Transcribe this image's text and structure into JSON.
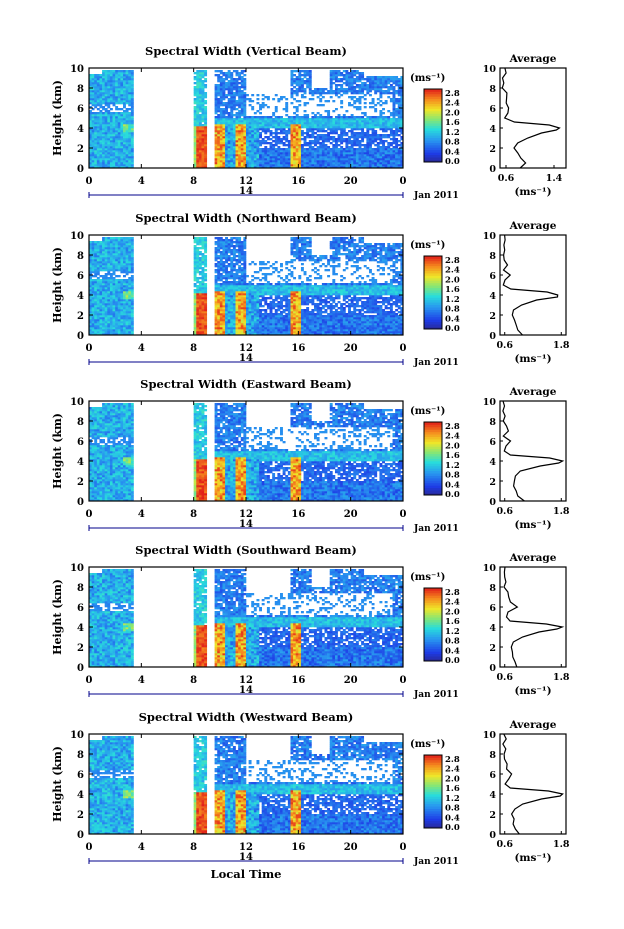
{
  "figure": {
    "xlabel": "Local Time",
    "date_main": "Jan 2011",
    "date_day": "14",
    "unit_label": "(ms⁻¹)",
    "avg_title": "Average",
    "avg_unit": "(ms⁻¹)",
    "ylabel": "Height (km)"
  },
  "chart_data": [
    {
      "type": "heatmap",
      "title": "Spectral Width (Vertical Beam)",
      "ylabel": "Height (km)",
      "xticks": [
        "0",
        "4",
        "8",
        "12",
        "16",
        "20",
        "0"
      ],
      "yticks": [
        "0",
        "2",
        "4",
        "6",
        "8",
        "10"
      ],
      "xlim": [
        0,
        24
      ],
      "ylim": [
        0,
        10
      ],
      "colorbar": {
        "ticks": [
          "0.0",
          "0.4",
          "0.8",
          "1.2",
          "1.6",
          "2.0",
          "2.4",
          "2.8"
        ],
        "range": [
          0,
          3.0
        ]
      },
      "average_profile": {
        "xticks": [
          "0.6",
          "1.4"
        ],
        "xlim": [
          0.5,
          1.6
        ],
        "height": [
          0,
          0.5,
          1,
          1.5,
          2,
          2.5,
          3,
          3.5,
          3.8,
          4,
          4.3,
          4.6,
          5,
          5.5,
          6,
          6.5,
          7,
          7.5,
          8,
          8.5,
          9,
          9.5,
          10
        ],
        "value": [
          0.85,
          0.92,
          0.86,
          0.78,
          0.76,
          0.82,
          0.95,
          1.2,
          1.45,
          1.5,
          1.3,
          0.75,
          0.6,
          0.62,
          0.66,
          0.58,
          0.62,
          0.6,
          0.55,
          0.57,
          0.56,
          0.6,
          0.58
        ]
      }
    },
    {
      "type": "heatmap",
      "title": "Spectral Width (Northward Beam)",
      "ylabel": "Height (km)",
      "xticks": [
        "0",
        "4",
        "8",
        "12",
        "16",
        "20",
        "0"
      ],
      "yticks": [
        "0",
        "2",
        "4",
        "6",
        "8",
        "10"
      ],
      "xlim": [
        0,
        24
      ],
      "ylim": [
        0,
        10
      ],
      "colorbar": {
        "ticks": [
          "0.0",
          "0.4",
          "0.8",
          "1.2",
          "1.6",
          "2.0",
          "2.4",
          "2.8"
        ],
        "range": [
          0,
          3.0
        ]
      },
      "average_profile": {
        "xticks": [
          "0.6",
          "1.8"
        ],
        "xlim": [
          0.5,
          1.9
        ],
        "height": [
          0,
          0.5,
          1,
          1.5,
          2,
          2.5,
          3,
          3.5,
          3.8,
          4,
          4.3,
          4.6,
          5,
          5.5,
          6,
          6.5,
          7,
          7.5,
          8,
          8.5,
          9,
          9.5,
          10
        ],
        "value": [
          0.95,
          0.85,
          0.82,
          0.78,
          0.76,
          0.8,
          0.95,
          1.3,
          1.7,
          1.75,
          1.5,
          0.7,
          0.6,
          0.62,
          0.7,
          0.6,
          0.65,
          0.62,
          0.58,
          0.6,
          0.56,
          0.62,
          0.58
        ]
      }
    },
    {
      "type": "heatmap",
      "title": "Spectral Width (Eastward Beam)",
      "ylabel": "Height (km)",
      "xticks": [
        "0",
        "4",
        "8",
        "12",
        "16",
        "20",
        "0"
      ],
      "yticks": [
        "0",
        "2",
        "4",
        "6",
        "8",
        "10"
      ],
      "xlim": [
        0,
        24
      ],
      "ylim": [
        0,
        10
      ],
      "colorbar": {
        "ticks": [
          "0.0",
          "0.4",
          "0.8",
          "1.2",
          "1.6",
          "2.0",
          "2.4",
          "2.8"
        ],
        "range": [
          0,
          3.0
        ]
      },
      "average_profile": {
        "xticks": [
          "0.6",
          "1.8"
        ],
        "xlim": [
          0.5,
          1.9
        ],
        "height": [
          0,
          0.5,
          1,
          1.5,
          2,
          2.5,
          3,
          3.5,
          3.8,
          4,
          4.3,
          4.6,
          5,
          5.5,
          6,
          6.5,
          7,
          7.5,
          8,
          8.5,
          9,
          9.5,
          10
        ],
        "value": [
          1.0,
          0.9,
          0.85,
          0.8,
          0.78,
          0.82,
          0.95,
          1.35,
          1.75,
          1.8,
          1.55,
          0.72,
          0.6,
          0.64,
          0.72,
          0.6,
          0.66,
          0.62,
          0.58,
          0.6,
          0.57,
          0.62,
          0.58
        ]
      }
    },
    {
      "type": "heatmap",
      "title": "Spectral Width (Southward Beam)",
      "ylabel": "Height (km)",
      "xticks": [
        "0",
        "4",
        "8",
        "12",
        "16",
        "20",
        "0"
      ],
      "yticks": [
        "0",
        "2",
        "4",
        "6",
        "8",
        "10"
      ],
      "xlim": [
        0,
        24
      ],
      "ylim": [
        0,
        10
      ],
      "colorbar": {
        "ticks": [
          "0.0",
          "0.4",
          "0.8",
          "1.2",
          "1.6",
          "2.0",
          "2.4",
          "2.8"
        ],
        "range": [
          0,
          3.0
        ]
      },
      "average_profile": {
        "xticks": [
          "0.6",
          "1.8"
        ],
        "xlim": [
          0.5,
          1.9
        ],
        "height": [
          0,
          0.5,
          1,
          1.5,
          2,
          2.5,
          3,
          3.5,
          3.8,
          4,
          4.3,
          4.6,
          5,
          5.5,
          6,
          6.5,
          7,
          7.5,
          8,
          8.5,
          9,
          9.5,
          10
        ],
        "value": [
          0.85,
          0.8,
          0.78,
          0.76,
          0.74,
          0.8,
          0.95,
          1.3,
          1.7,
          1.8,
          1.5,
          0.72,
          0.62,
          0.7,
          0.85,
          0.7,
          0.68,
          0.64,
          0.6,
          0.62,
          0.57,
          0.62,
          0.58
        ]
      }
    },
    {
      "type": "heatmap",
      "title": "Spectral Width (Westward Beam)",
      "ylabel": "Height (km)",
      "xticks": [
        "0",
        "4",
        "8",
        "12",
        "16",
        "20",
        "0"
      ],
      "yticks": [
        "0",
        "2",
        "4",
        "6",
        "8",
        "10"
      ],
      "xlim": [
        0,
        24
      ],
      "ylim": [
        0,
        10
      ],
      "colorbar": {
        "ticks": [
          "0.0",
          "0.4",
          "0.8",
          "1.2",
          "1.6",
          "2.0",
          "2.4",
          "2.8"
        ],
        "range": [
          0,
          3.0
        ]
      },
      "average_profile": {
        "xticks": [
          "0.6",
          "1.8"
        ],
        "xlim": [
          0.5,
          1.9
        ],
        "height": [
          0,
          0.5,
          1,
          1.5,
          2,
          2.5,
          3,
          3.5,
          3.8,
          4,
          4.3,
          4.6,
          5,
          5.5,
          6,
          6.5,
          7,
          7.5,
          8,
          8.5,
          9,
          9.5,
          10
        ],
        "value": [
          0.9,
          0.85,
          0.8,
          0.78,
          0.76,
          0.82,
          0.98,
          1.35,
          1.75,
          1.85,
          1.55,
          0.72,
          0.62,
          0.66,
          0.74,
          0.62,
          0.66,
          0.62,
          0.58,
          0.62,
          0.57,
          0.62,
          0.58
        ]
      }
    }
  ]
}
